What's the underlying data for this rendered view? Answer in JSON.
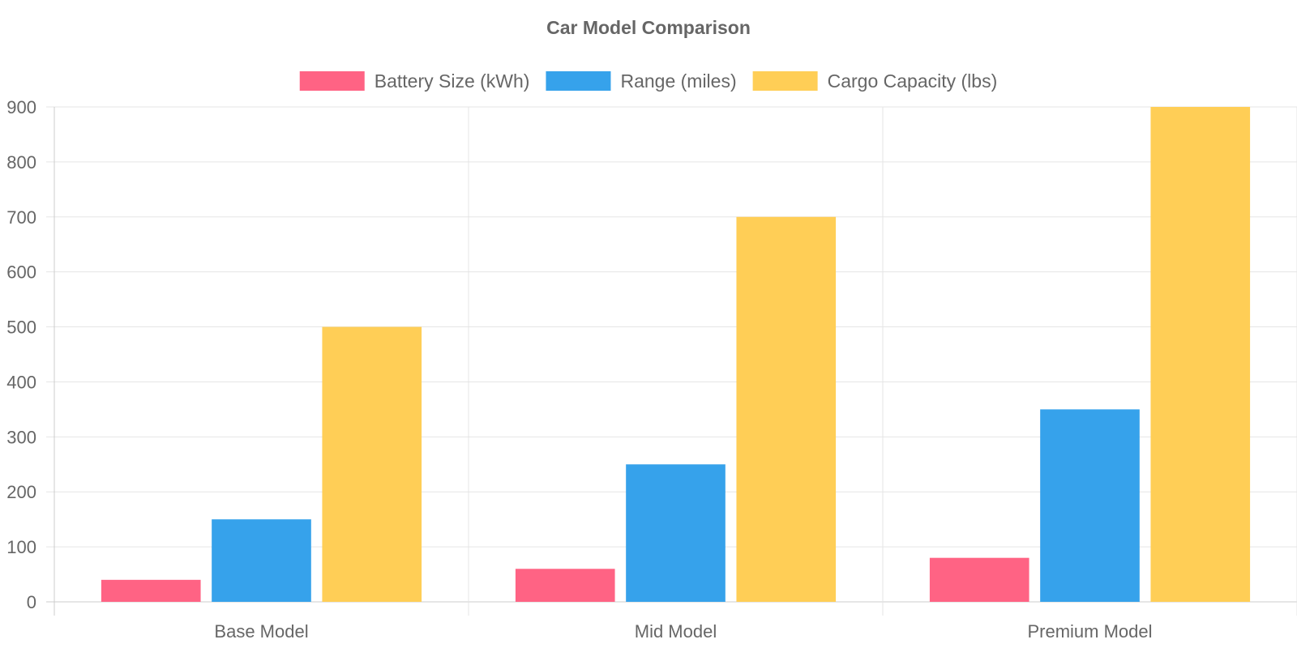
{
  "chart_data": {
    "type": "bar",
    "title": "Car Model Comparison",
    "categories": [
      "Base Model",
      "Mid Model",
      "Premium Model"
    ],
    "series": [
      {
        "name": "Battery Size (kWh)",
        "values": [
          40,
          60,
          80
        ],
        "color": "#ff6384"
      },
      {
        "name": "Range (miles)",
        "values": [
          150,
          250,
          350
        ],
        "color": "#36a2eb"
      },
      {
        "name": "Cargo Capacity (lbs)",
        "values": [
          500,
          700,
          900
        ],
        "color": "#ffce56"
      }
    ],
    "yticks": [
      0,
      100,
      200,
      300,
      400,
      500,
      600,
      700,
      800,
      900
    ],
    "ylim": [
      0,
      900
    ],
    "grid": true,
    "legend_position": "top",
    "colors": {
      "text": "#666666",
      "grid": "#e5e5e5",
      "axis": "#cccccc"
    }
  }
}
